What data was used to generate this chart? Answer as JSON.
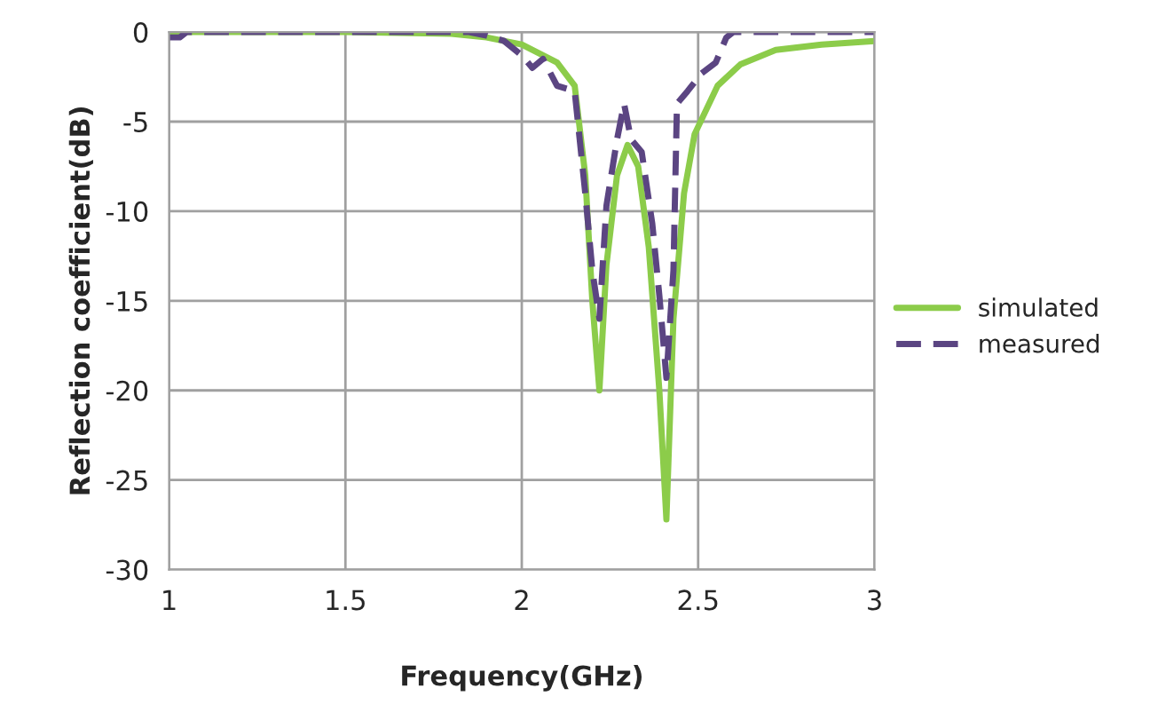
{
  "chart_data": {
    "type": "line",
    "xlabel": "Frequency(GHz)",
    "ylabel": "Reflection coefficient(dB)",
    "xlim": [
      1,
      3
    ],
    "xticks": [
      1,
      1.5,
      2,
      2.5,
      3
    ],
    "ylim": [
      -30,
      0
    ],
    "yticks": [
      -30,
      -25,
      -20,
      -15,
      -10,
      -5,
      0
    ],
    "grid": true,
    "legend": "right",
    "series": [
      {
        "name": "simulated",
        "color": "#8ccc4a",
        "line_style": "solid",
        "x": [
          1,
          1.5,
          1.8,
          1.9,
          2.0,
          2.1,
          2.15,
          2.18,
          2.2,
          2.22,
          2.24,
          2.27,
          2.3,
          2.33,
          2.36,
          2.39,
          2.41,
          2.43,
          2.46,
          2.49,
          2.555,
          2.62,
          2.72,
          2.85,
          3
        ],
        "values": [
          0,
          0,
          -0.1,
          -0.3,
          -0.7,
          -1.7,
          -3,
          -8,
          -15,
          -20,
          -13,
          -8,
          -6.3,
          -7.5,
          -12,
          -20,
          -27.2,
          -16,
          -9,
          -5.7,
          -3,
          -1.8,
          -1,
          -0.7,
          -0.5
        ]
      },
      {
        "name": "measured",
        "color": "#5b4582",
        "line_style": "dashed",
        "x": [
          1,
          1.03,
          1.05,
          1.1,
          1.5,
          1.85,
          1.9,
          1.95,
          2.0,
          2.03,
          2.06,
          2.1,
          2.15,
          2.18,
          2.2,
          2.22,
          2.24,
          2.27,
          2.29,
          2.31,
          2.34,
          2.37,
          2.39,
          2.41,
          2.43,
          2.44,
          2.47,
          2.51,
          2.55,
          2.58,
          2.6,
          3
        ],
        "values": [
          -0.3,
          -0.3,
          0,
          0,
          0,
          0,
          -0.2,
          -0.5,
          -1.3,
          -2,
          -1.5,
          -3,
          -3.3,
          -9,
          -13.3,
          -16,
          -9.7,
          -6,
          -4,
          -6,
          -6.7,
          -10.7,
          -14.7,
          -19.3,
          -13.3,
          -4,
          -3.3,
          -2.3,
          -1.7,
          -0.3,
          0,
          0
        ]
      }
    ]
  }
}
